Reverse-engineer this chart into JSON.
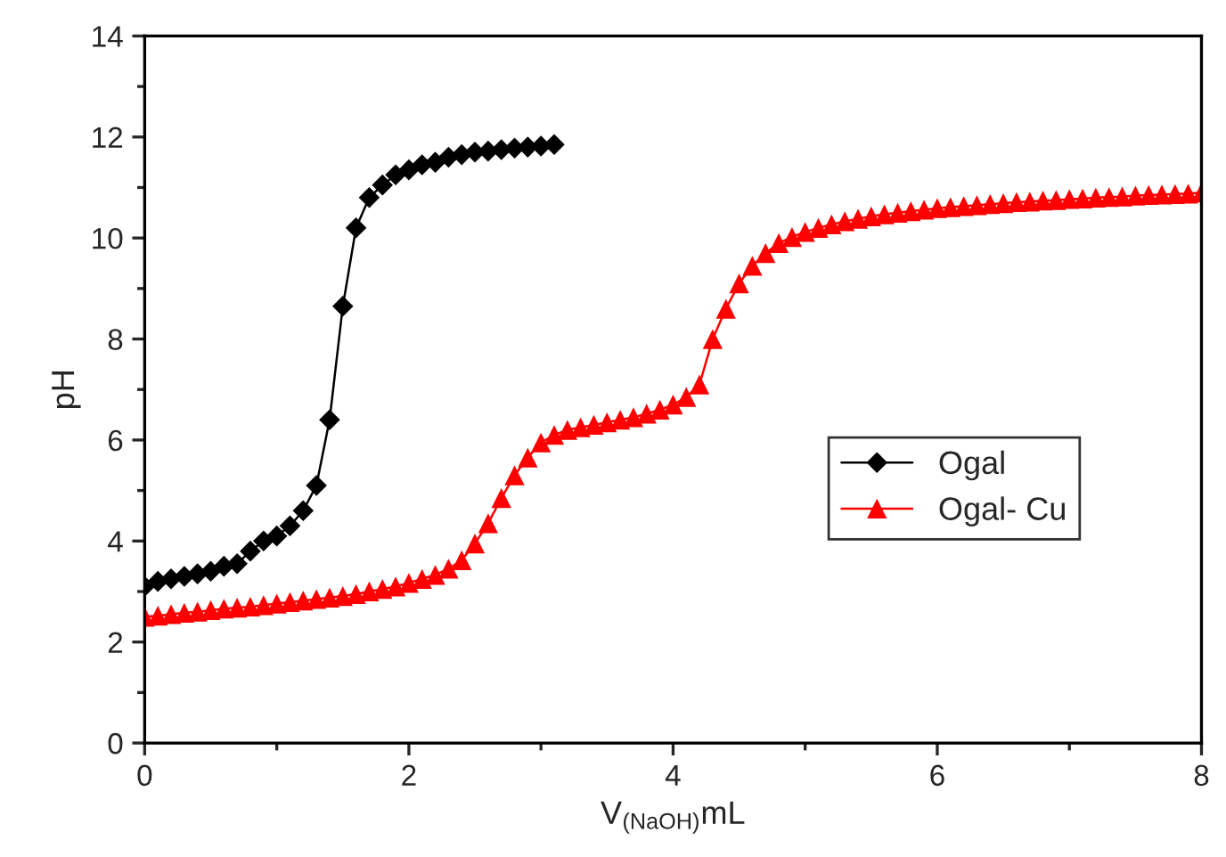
{
  "chart_data": {
    "type": "line",
    "xlabel": "V$_{(NaOH)}$mL",
    "ylabel": "pH",
    "xlim": [
      0,
      8
    ],
    "ylim": [
      0,
      14
    ],
    "xticks": [
      0,
      2,
      4,
      6,
      8
    ],
    "yticks": [
      0,
      2,
      4,
      6,
      8,
      10,
      12,
      14
    ],
    "grid": false,
    "legend": "right",
    "line_style": "solid",
    "series": [
      {
        "name": "Ogal",
        "color": "#000000",
        "marker": "diamond",
        "x": [
          0,
          0.1,
          0.2,
          0.3,
          0.4,
          0.5,
          0.6,
          0.7,
          0.8,
          0.9,
          1.0,
          1.1,
          1.2,
          1.3,
          1.4,
          1.5,
          1.6,
          1.7,
          1.8,
          1.9,
          2.0,
          2.1,
          2.2,
          2.3,
          2.4,
          2.5,
          2.6,
          2.7,
          2.8,
          2.9,
          3.0,
          3.1
        ],
        "values": [
          3.1,
          3.2,
          3.25,
          3.3,
          3.35,
          3.4,
          3.5,
          3.55,
          3.8,
          4.0,
          4.1,
          4.3,
          4.6,
          5.1,
          6.4,
          8.65,
          10.2,
          10.8,
          11.05,
          11.25,
          11.35,
          11.45,
          11.5,
          11.6,
          11.65,
          11.7,
          11.72,
          11.75,
          11.78,
          11.8,
          11.82,
          11.85
        ]
      },
      {
        "name": "Ogal- Cu",
        "color": "#ff0000",
        "marker": "triangle",
        "x": [
          0,
          0.1,
          0.2,
          0.3,
          0.4,
          0.5,
          0.6,
          0.7,
          0.8,
          0.9,
          1.0,
          1.1,
          1.2,
          1.3,
          1.4,
          1.5,
          1.6,
          1.7,
          1.8,
          1.9,
          2.0,
          2.1,
          2.2,
          2.3,
          2.4,
          2.5,
          2.6,
          2.7,
          2.8,
          2.9,
          3.0,
          3.1,
          3.2,
          3.3,
          3.4,
          3.5,
          3.6,
          3.7,
          3.8,
          3.9,
          4.0,
          4.1,
          4.2,
          4.3,
          4.4,
          4.5,
          4.6,
          4.7,
          4.8,
          4.9,
          5.0,
          5.1,
          5.2,
          5.3,
          5.4,
          5.5,
          5.6,
          5.7,
          5.8,
          5.9,
          6.0,
          6.1,
          6.2,
          6.3,
          6.4,
          6.5,
          6.6,
          6.7,
          6.8,
          6.9,
          7.0,
          7.1,
          7.2,
          7.3,
          7.4,
          7.5,
          7.6,
          7.7,
          7.8,
          7.9,
          8.0
        ],
        "values": [
          2.5,
          2.52,
          2.55,
          2.58,
          2.6,
          2.63,
          2.66,
          2.68,
          2.7,
          2.73,
          2.76,
          2.79,
          2.82,
          2.85,
          2.88,
          2.91,
          2.95,
          3.0,
          3.05,
          3.1,
          3.17,
          3.25,
          3.33,
          3.45,
          3.62,
          3.95,
          4.35,
          4.85,
          5.3,
          5.65,
          5.95,
          6.1,
          6.2,
          6.25,
          6.3,
          6.35,
          6.4,
          6.45,
          6.52,
          6.6,
          6.7,
          6.85,
          7.1,
          8.0,
          8.6,
          9.1,
          9.45,
          9.7,
          9.9,
          10.02,
          10.12,
          10.2,
          10.27,
          10.33,
          10.38,
          10.43,
          10.47,
          10.5,
          10.53,
          10.56,
          10.59,
          10.61,
          10.63,
          10.65,
          10.67,
          10.69,
          10.71,
          10.72,
          10.74,
          10.75,
          10.77,
          10.78,
          10.8,
          10.81,
          10.82,
          10.84,
          10.85,
          10.86,
          10.87,
          10.88,
          10.9
        ]
      }
    ]
  }
}
